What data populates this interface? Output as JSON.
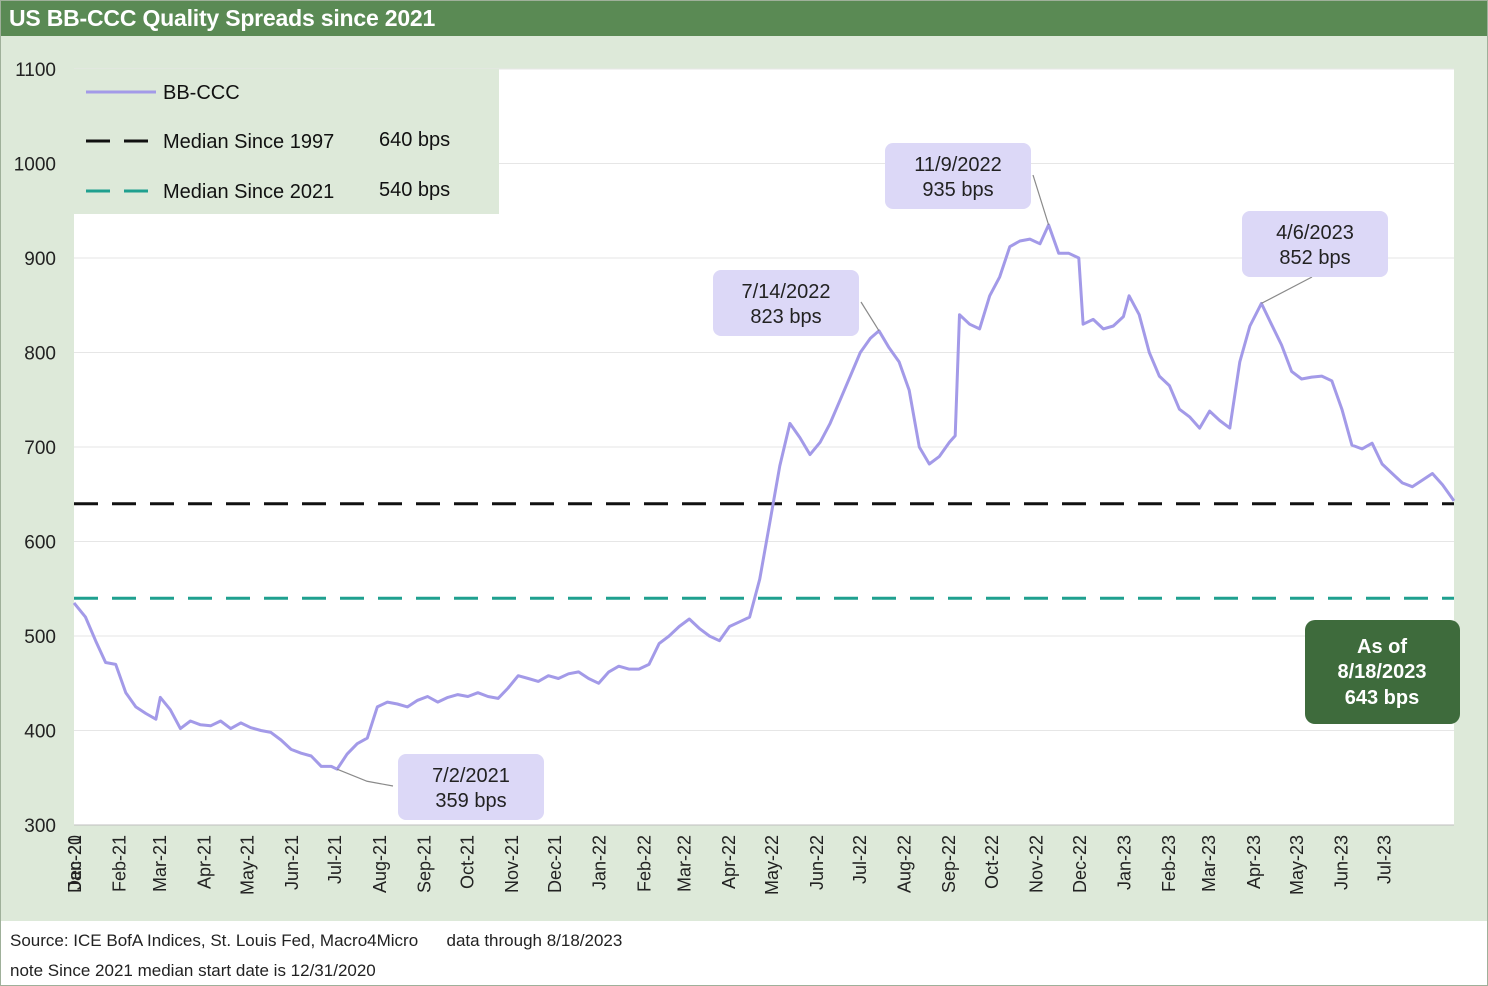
{
  "title": "US BB-CCC Quality Spreads since 2021",
  "footer": {
    "source": "Source: ICE BofA Indices, St. Louis Fed, Macro4Micro      data through 8/18/2023",
    "note": "note Since 2021 median start date is 12/31/2020"
  },
  "colors": {
    "title_bar": "#5a8a54",
    "panel": "#dde9d9",
    "series": "#a39ae8",
    "median_1997": "#111111",
    "median_2021": "#1fa08f",
    "callout": "#dcd8f7",
    "current_callout": "#3e6b3c"
  },
  "chart_data": {
    "type": "line",
    "title": "US BB-CCC Quality Spreads since 2021",
    "ylim": [
      300,
      1100
    ],
    "yticks": [
      300,
      400,
      500,
      600,
      700,
      800,
      900,
      1000,
      1100
    ],
    "x_start": "2020-12-31",
    "x_end": "2023-08-18",
    "xtick_labels": [
      "Dec-20",
      "Jan-21",
      "Feb-21",
      "Mar-21",
      "Apr-21",
      "May-21",
      "Jun-21",
      "Jul-21",
      "Aug-21",
      "Sep-21",
      "Oct-21",
      "Nov-21",
      "Dec-21",
      "Jan-22",
      "Feb-22",
      "Mar-22",
      "Apr-22",
      "May-22",
      "Jun-22",
      "Jul-22",
      "Aug-22",
      "Sep-22",
      "Oct-22",
      "Nov-22",
      "Dec-22",
      "Jan-23",
      "Feb-23",
      "Mar-23",
      "Apr-23",
      "May-23",
      "Jun-23",
      "Jul-23"
    ],
    "grid": true,
    "series": [
      {
        "name": "BB-CCC",
        "points": [
          [
            "2020-12-31",
            535
          ],
          [
            "2021-01-08",
            520
          ],
          [
            "2021-01-15",
            495
          ],
          [
            "2021-01-22",
            472
          ],
          [
            "2021-01-29",
            470
          ],
          [
            "2021-02-05",
            440
          ],
          [
            "2021-02-12",
            425
          ],
          [
            "2021-02-19",
            418
          ],
          [
            "2021-02-26",
            412
          ],
          [
            "2021-03-01",
            435
          ],
          [
            "2021-03-08",
            422
          ],
          [
            "2021-03-15",
            402
          ],
          [
            "2021-03-22",
            410
          ],
          [
            "2021-03-29",
            406
          ],
          [
            "2021-04-05",
            405
          ],
          [
            "2021-04-12",
            410
          ],
          [
            "2021-04-19",
            402
          ],
          [
            "2021-04-26",
            408
          ],
          [
            "2021-05-03",
            403
          ],
          [
            "2021-05-10",
            400
          ],
          [
            "2021-05-17",
            398
          ],
          [
            "2021-05-24",
            390
          ],
          [
            "2021-05-31",
            380
          ],
          [
            "2021-06-07",
            376
          ],
          [
            "2021-06-14",
            373
          ],
          [
            "2021-06-21",
            362
          ],
          [
            "2021-06-28",
            362
          ],
          [
            "2021-07-02",
            359
          ],
          [
            "2021-07-09",
            375
          ],
          [
            "2021-07-16",
            386
          ],
          [
            "2021-07-23",
            392
          ],
          [
            "2021-07-30",
            425
          ],
          [
            "2021-08-06",
            430
          ],
          [
            "2021-08-13",
            428
          ],
          [
            "2021-08-20",
            425
          ],
          [
            "2021-08-27",
            432
          ],
          [
            "2021-09-03",
            436
          ],
          [
            "2021-09-10",
            430
          ],
          [
            "2021-09-17",
            435
          ],
          [
            "2021-09-24",
            438
          ],
          [
            "2021-10-01",
            436
          ],
          [
            "2021-10-08",
            440
          ],
          [
            "2021-10-15",
            436
          ],
          [
            "2021-10-22",
            434
          ],
          [
            "2021-10-29",
            445
          ],
          [
            "2021-11-05",
            458
          ],
          [
            "2021-11-12",
            455
          ],
          [
            "2021-11-19",
            452
          ],
          [
            "2021-11-26",
            458
          ],
          [
            "2021-12-03",
            455
          ],
          [
            "2021-12-10",
            460
          ],
          [
            "2021-12-17",
            462
          ],
          [
            "2021-12-24",
            455
          ],
          [
            "2021-12-31",
            450
          ],
          [
            "2022-01-07",
            462
          ],
          [
            "2022-01-14",
            468
          ],
          [
            "2022-01-21",
            465
          ],
          [
            "2022-01-28",
            465
          ],
          [
            "2022-02-04",
            470
          ],
          [
            "2022-02-11",
            492
          ],
          [
            "2022-02-18",
            500
          ],
          [
            "2022-02-25",
            510
          ],
          [
            "2022-03-04",
            518
          ],
          [
            "2022-03-11",
            508
          ],
          [
            "2022-03-18",
            500
          ],
          [
            "2022-03-25",
            495
          ],
          [
            "2022-04-01",
            510
          ],
          [
            "2022-04-08",
            515
          ],
          [
            "2022-04-15",
            520
          ],
          [
            "2022-04-22",
            560
          ],
          [
            "2022-04-29",
            620
          ],
          [
            "2022-05-06",
            680
          ],
          [
            "2022-05-13",
            725
          ],
          [
            "2022-05-20",
            710
          ],
          [
            "2022-05-27",
            692
          ],
          [
            "2022-06-03",
            705
          ],
          [
            "2022-06-10",
            725
          ],
          [
            "2022-06-17",
            750
          ],
          [
            "2022-06-24",
            775
          ],
          [
            "2022-07-01",
            800
          ],
          [
            "2022-07-08",
            815
          ],
          [
            "2022-07-14",
            823
          ],
          [
            "2022-07-21",
            805
          ],
          [
            "2022-07-28",
            790
          ],
          [
            "2022-08-04",
            760
          ],
          [
            "2022-08-11",
            700
          ],
          [
            "2022-08-18",
            682
          ],
          [
            "2022-08-25",
            690
          ],
          [
            "2022-09-01",
            705
          ],
          [
            "2022-09-05",
            712
          ],
          [
            "2022-09-08",
            840
          ],
          [
            "2022-09-15",
            830
          ],
          [
            "2022-09-22",
            825
          ],
          [
            "2022-09-29",
            860
          ],
          [
            "2022-10-06",
            880
          ],
          [
            "2022-10-13",
            912
          ],
          [
            "2022-10-20",
            918
          ],
          [
            "2022-10-27",
            920
          ],
          [
            "2022-11-03",
            915
          ],
          [
            "2022-11-09",
            935
          ],
          [
            "2022-11-16",
            905
          ],
          [
            "2022-11-23",
            905
          ],
          [
            "2022-11-30",
            900
          ],
          [
            "2022-12-03",
            830
          ],
          [
            "2022-12-10",
            835
          ],
          [
            "2022-12-17",
            825
          ],
          [
            "2022-12-24",
            828
          ],
          [
            "2022-12-31",
            838
          ],
          [
            "2023-01-04",
            860
          ],
          [
            "2023-01-11",
            840
          ],
          [
            "2023-01-18",
            800
          ],
          [
            "2023-01-25",
            775
          ],
          [
            "2023-02-01",
            765
          ],
          [
            "2023-02-08",
            740
          ],
          [
            "2023-02-15",
            732
          ],
          [
            "2023-02-22",
            720
          ],
          [
            "2023-03-01",
            738
          ],
          [
            "2023-03-08",
            728
          ],
          [
            "2023-03-15",
            720
          ],
          [
            "2023-03-22",
            790
          ],
          [
            "2023-03-29",
            828
          ],
          [
            "2023-04-06",
            852
          ],
          [
            "2023-04-13",
            830
          ],
          [
            "2023-04-20",
            808
          ],
          [
            "2023-04-27",
            780
          ],
          [
            "2023-05-04",
            772
          ],
          [
            "2023-05-11",
            774
          ],
          [
            "2023-05-18",
            775
          ],
          [
            "2023-05-25",
            770
          ],
          [
            "2023-06-01",
            740
          ],
          [
            "2023-06-08",
            702
          ],
          [
            "2023-06-15",
            698
          ],
          [
            "2023-06-22",
            704
          ],
          [
            "2023-06-29",
            682
          ],
          [
            "2023-07-06",
            672
          ],
          [
            "2023-07-13",
            662
          ],
          [
            "2023-07-20",
            658
          ],
          [
            "2023-07-27",
            665
          ],
          [
            "2023-08-03",
            672
          ],
          [
            "2023-08-10",
            660
          ],
          [
            "2023-08-18",
            643
          ]
        ]
      },
      {
        "name": "Median Since 1997",
        "value": 640,
        "value_label": "640 bps",
        "style": "dashed"
      },
      {
        "name": "Median Since 2021",
        "value": 540,
        "value_label": "540 bps",
        "style": "dashed"
      }
    ],
    "legend": "top-left",
    "annotations": [
      {
        "date": "2021-07-02",
        "value": 359,
        "line1": "7/2/2021",
        "line2": "359 bps"
      },
      {
        "date": "2022-07-14",
        "value": 823,
        "line1": "7/14/2022",
        "line2": "823 bps"
      },
      {
        "date": "2022-11-09",
        "value": 935,
        "line1": "11/9/2022",
        "line2": "935 bps"
      },
      {
        "date": "2023-04-06",
        "value": 852,
        "line1": "4/6/2023",
        "line2": "852 bps"
      }
    ],
    "current": {
      "line1": "As of",
      "line2": "8/18/2023",
      "line3": "643 bps"
    }
  }
}
